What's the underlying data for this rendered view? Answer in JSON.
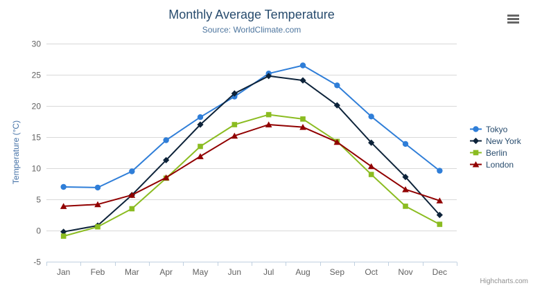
{
  "credits": "Highcharts.com",
  "export_menu_icon": "hamburger-icon",
  "chart_data": {
    "type": "line",
    "title": "Monthly Average Temperature",
    "subtitle": "Source: WorldClimate.com",
    "xlabel": "",
    "ylabel": "Temperature (°C)",
    "categories": [
      "Jan",
      "Feb",
      "Mar",
      "Apr",
      "May",
      "Jun",
      "Jul",
      "Aug",
      "Sep",
      "Oct",
      "Nov",
      "Dec"
    ],
    "ylim": [
      -5,
      30
    ],
    "ytick_interval": 5,
    "grid": true,
    "legend_position": "right",
    "colors": {
      "grid": "#d8d8d8",
      "axis_line": "#c0d0e0",
      "tick_label": "#606060",
      "yaxis_title": "#4572a7",
      "legend_text": "#274b6d"
    },
    "series": [
      {
        "name": "Tokyo",
        "color": "#2f7ed8",
        "marker": "circle",
        "values": [
          7.0,
          6.9,
          9.5,
          14.5,
          18.2,
          21.5,
          25.2,
          26.5,
          23.3,
          18.3,
          13.9,
          9.6
        ]
      },
      {
        "name": "New York",
        "color": "#0d233a",
        "marker": "diamond",
        "values": [
          -0.2,
          0.8,
          5.7,
          11.3,
          17.0,
          22.0,
          24.8,
          24.1,
          20.1,
          14.1,
          8.6,
          2.5
        ]
      },
      {
        "name": "Berlin",
        "color": "#8bbc21",
        "marker": "square",
        "values": [
          -0.9,
          0.6,
          3.5,
          8.4,
          13.5,
          17.0,
          18.6,
          17.9,
          14.3,
          9.0,
          3.9,
          1.0
        ]
      },
      {
        "name": "London",
        "color": "#910000",
        "marker": "triangle",
        "values": [
          3.9,
          4.2,
          5.7,
          8.5,
          11.9,
          15.2,
          17.0,
          16.6,
          14.2,
          10.3,
          6.6,
          4.8
        ]
      }
    ]
  }
}
